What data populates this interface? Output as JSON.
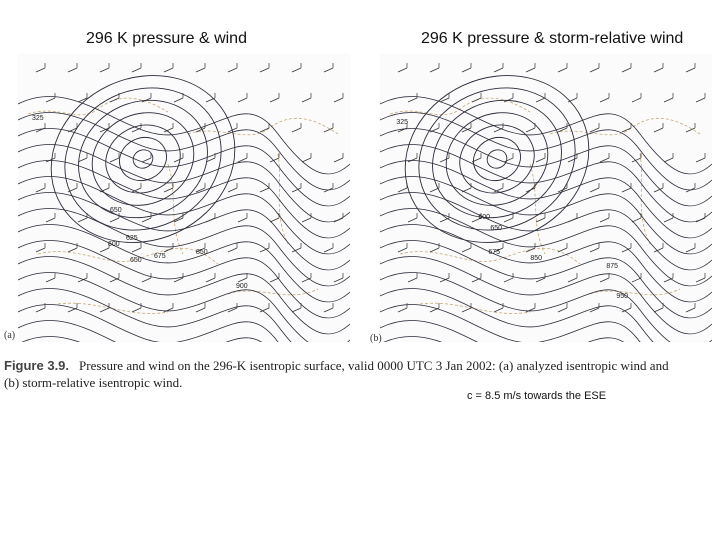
{
  "titles": {
    "left": "296 K pressure & wind",
    "right": "296 K pressure & storm-relative wind"
  },
  "panels": {
    "a_label": "(a)",
    "b_label": "(b)",
    "a_contour_labels": [
      "325",
      "650",
      "600",
      "625",
      "650",
      "675",
      "850",
      "900"
    ],
    "b_contour_labels": [
      "325",
      "600",
      "650",
      "675",
      "850",
      "875",
      "950"
    ]
  },
  "caption": {
    "figure_number": "Figure 3.9.",
    "text": "Pressure and wind on the 296-K isentropic surface, valid 0000 UTC 3 Jan 2002: (a) analyzed isentropic wind and (b) storm-relative isentropic wind."
  },
  "note": "c = 8.5 m/s towards the ESE",
  "colors": {
    "contour": "#2a2a3a",
    "geography": "#c8a878",
    "wind_barb": "#333333"
  }
}
